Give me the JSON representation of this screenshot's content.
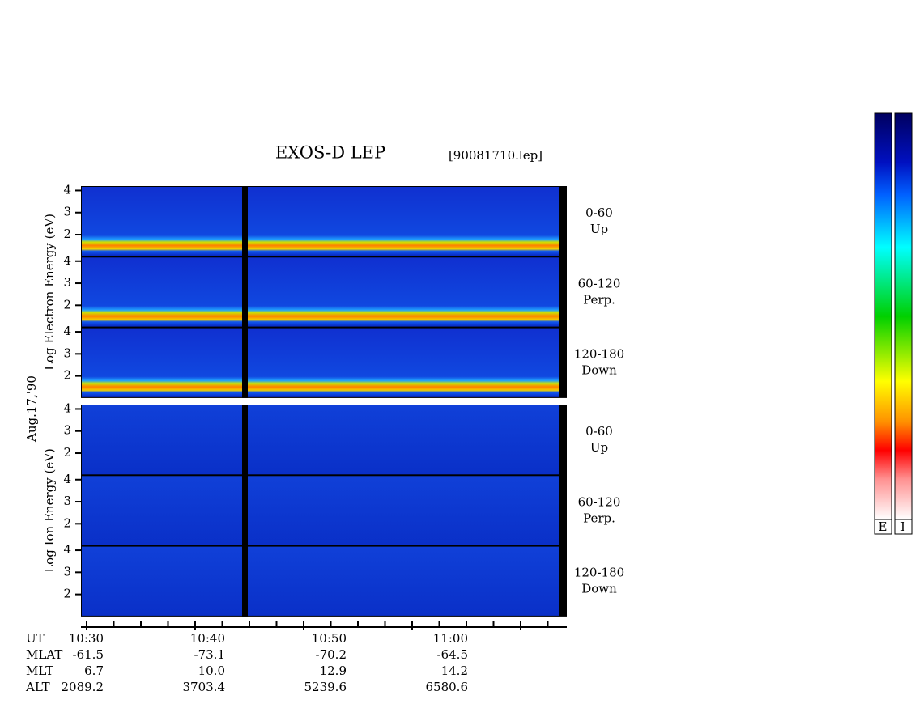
{
  "title": "EXOS-D LEP",
  "file": "[90081710.lep]",
  "date": "Aug.17,'90",
  "groups": [
    {
      "label": "Log Electron Energy (eV)",
      "panels": [
        {
          "angle": "0-60",
          "direction": "Up"
        },
        {
          "angle": "60-120",
          "direction": "Perp."
        },
        {
          "angle": "120-180",
          "direction": "Down"
        }
      ]
    },
    {
      "label": "Log Ion Energy (eV)",
      "panels": [
        {
          "angle": "0-60",
          "direction": "Up"
        },
        {
          "angle": "60-120",
          "direction": "Perp."
        },
        {
          "angle": "120-180",
          "direction": "Down"
        }
      ]
    }
  ],
  "yticks": [
    2,
    3,
    4
  ],
  "ylim": [
    1,
    4.2
  ],
  "x_axis": {
    "row_labels": [
      "UT",
      "MLAT",
      "MLT",
      "ALT"
    ],
    "columns": [
      [
        "10:30",
        "-61.5",
        "6.7",
        "2089.2"
      ],
      [
        "10:40",
        "-73.1",
        "10.0",
        "3703.4"
      ],
      [
        "10:50",
        "-70.2",
        "12.9",
        "5239.6"
      ],
      [
        "11:00",
        "-64.5",
        "14.2",
        "6580.6"
      ]
    ]
  },
  "colorbar": {
    "labels": [
      "E",
      "I"
    ]
  }
}
